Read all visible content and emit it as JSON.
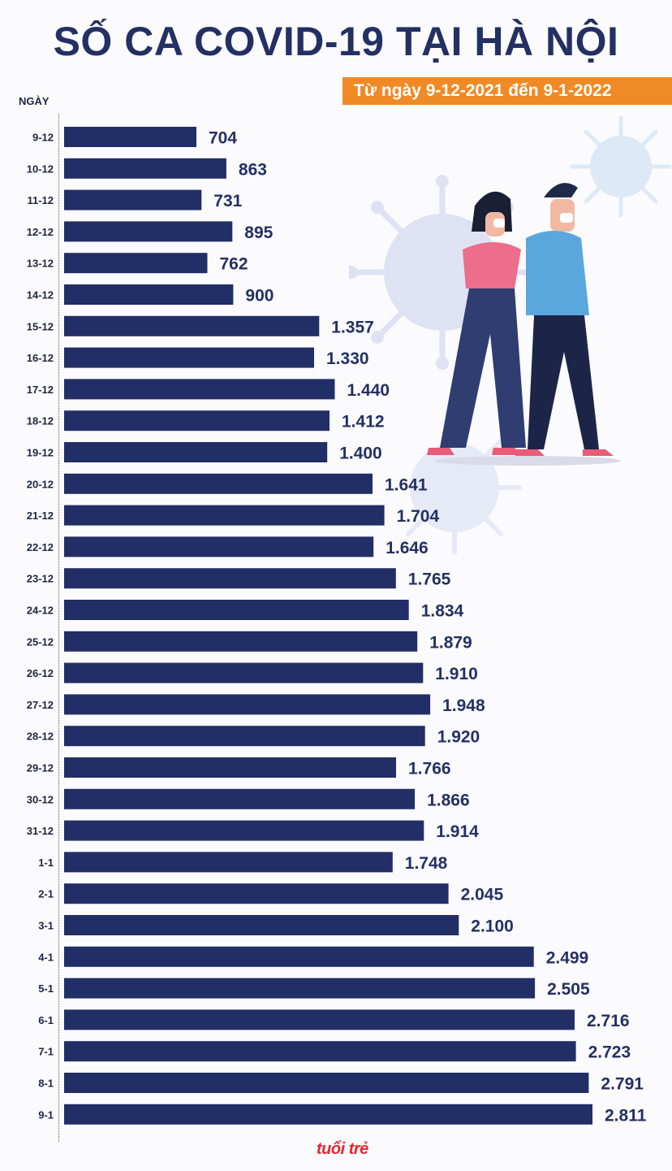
{
  "title": "SỐ CA COVID-19 TẠI HÀ NỘI",
  "subtitle": "Từ ngày 9-12-2021 đến 9-1-2022",
  "logo_text": "tuổi trẻ",
  "colors": {
    "bar": "#222e66",
    "accent": "#f08a26",
    "title": "#243063"
  },
  "chart_data": {
    "type": "bar",
    "orientation": "horizontal",
    "xlabel": "",
    "ylabel": "NGÀY",
    "categories": [
      "9-12",
      "10-12",
      "11-12",
      "12-12",
      "13-12",
      "14-12",
      "15-12",
      "16-12",
      "17-12",
      "18-12",
      "19-12",
      "20-12",
      "21-12",
      "22-12",
      "23-12",
      "24-12",
      "25-12",
      "26-12",
      "27-12",
      "28-12",
      "29-12",
      "30-12",
      "31-12",
      "1-1",
      "2-1",
      "3-1",
      "4-1",
      "5-1",
      "6-1",
      "7-1",
      "8-1",
      "9-1"
    ],
    "values": [
      704,
      863,
      731,
      895,
      762,
      900,
      1357,
      1330,
      1440,
      1412,
      1400,
      1641,
      1704,
      1646,
      1765,
      1834,
      1879,
      1910,
      1948,
      1920,
      1766,
      1866,
      1914,
      1748,
      2045,
      2100,
      2499,
      2505,
      2716,
      2723,
      2791,
      2811
    ],
    "value_labels": [
      "704",
      "863",
      "731",
      "895",
      "762",
      "900",
      "1.357",
      "1.330",
      "1.440",
      "1.412",
      "1.400",
      "1.641",
      "1.704",
      "1.646",
      "1.765",
      "1.834",
      "1.879",
      "1.910",
      "1.948",
      "1.920",
      "1.766",
      "1.866",
      "1.914",
      "1.748",
      "2.045",
      "2.100",
      "2.499",
      "2.505",
      "2.716",
      "2.723",
      "2.791",
      "2.811"
    ],
    "grid": false
  }
}
